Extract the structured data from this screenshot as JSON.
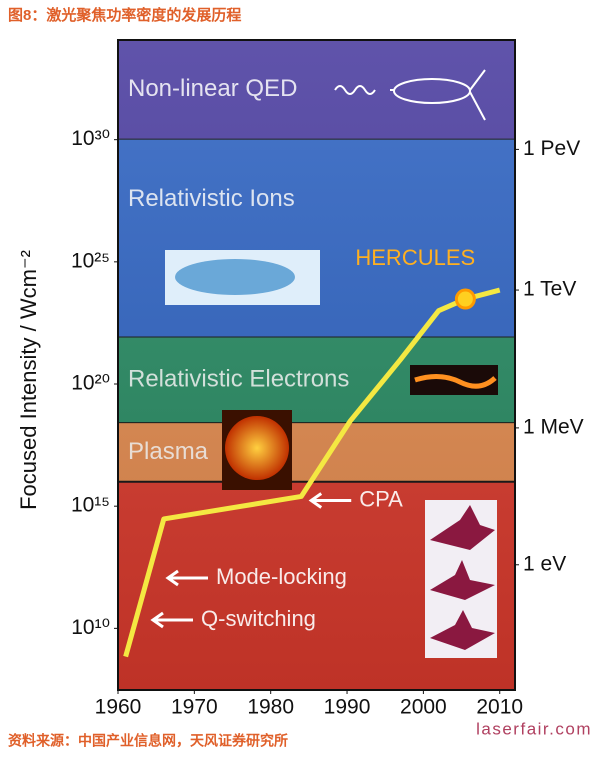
{
  "chart_data": {
    "type": "line",
    "title": "图8：激光聚焦功率密度的发展历程",
    "y_label": "Focused Intensity / Wcm⁻²",
    "log_y": true,
    "xlim": [
      1960,
      2012
    ],
    "xticks": [
      1960,
      1970,
      1980,
      1990,
      2000,
      2010
    ],
    "ylim": [
      30000000.0,
      1.2e+34
    ],
    "yticks": [
      {
        "value": 1e+30,
        "label": "10³⁰"
      },
      {
        "value": 1e+25,
        "label": "10²⁵"
      },
      {
        "value": 1e+20,
        "label": "10²⁰"
      },
      {
        "value": 1000000000000000.0,
        "label": "10¹⁵"
      },
      {
        "value": 10000000000.0,
        "label": "10¹⁰"
      }
    ],
    "y2ticks": [
      {
        "value": 4e+29,
        "label": "1 PeV"
      },
      {
        "value": 7e+23,
        "label": "1 TeV"
      },
      {
        "value": 1.6e+18,
        "label": "1 MeV"
      },
      {
        "value": 4000000000000.0,
        "label": "1 eV"
      }
    ],
    "bands": [
      {
        "name": "Non-linear QED",
        "from": 1e+30,
        "to": 1.2e+34,
        "color": "#4a3c9f"
      },
      {
        "name": "Relativistic Ions",
        "from": 8e+21,
        "to": 1e+30,
        "color": "#2e63c2"
      },
      {
        "name": "Relativistic Electrons",
        "from": 2.5e+18,
        "to": 8e+21,
        "color": "#278a62"
      },
      {
        "name": "Plasma",
        "from": 1e+16,
        "to": 2.5e+18,
        "color": "#e28a4e"
      }
    ],
    "series": [
      {
        "name": "Focused intensity",
        "color": "#f4e842",
        "x": [
          1961,
          1966,
          1984,
          1990.4,
          1997,
          2002,
          2005.5,
          2010
        ],
        "values": [
          700000000.0,
          300000000000000.0,
          2500000000000000.0,
          3e+18,
          1e+21,
          1e+23,
          3e+23,
          7e+23
        ]
      }
    ],
    "annotations": [
      "HERCULES",
      "CPA",
      "Mode-locking",
      "Q-switching"
    ],
    "source": "资料来源：中国产业信息网，天风证券研究所",
    "watermark": "laserfair.com"
  }
}
